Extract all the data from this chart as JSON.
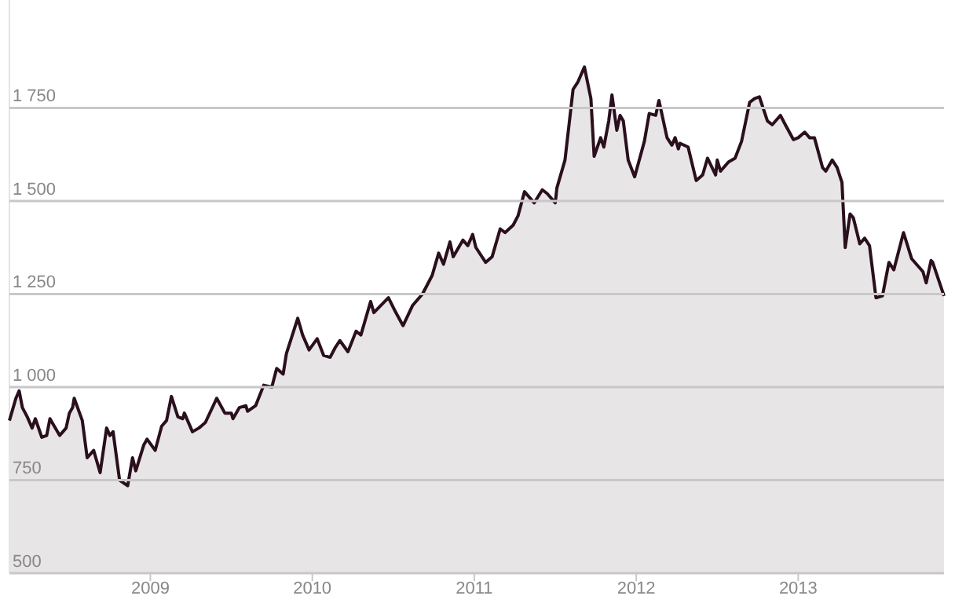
{
  "chart_data": {
    "type": "area",
    "color": "#2a0f1d",
    "grid": "y",
    "xlim": [
      2008.13,
      2013.9
    ],
    "xticks": [
      2009,
      2010,
      2011,
      2012,
      2013
    ],
    "ylim": [
      500,
      2040
    ],
    "yticks": [
      500,
      750,
      {
        "value": 1000,
        "label": "1 000"
      },
      {
        "value": 1250,
        "label": "1 250"
      },
      {
        "value": 1500,
        "label": "1 500"
      },
      {
        "value": 1750,
        "label": "1 750"
      }
    ],
    "x": [
      2008.13,
      2008.17,
      2008.19,
      2008.21,
      2008.24,
      2008.27,
      2008.29,
      2008.33,
      2008.36,
      2008.38,
      2008.44,
      2008.48,
      2008.5,
      2008.52,
      2008.53,
      2008.58,
      2008.61,
      2008.65,
      2008.69,
      2008.73,
      2008.75,
      2008.77,
      2008.81,
      2008.86,
      2008.89,
      2008.91,
      2008.96,
      2008.98,
      2009.03,
      2009.07,
      2009.1,
      2009.13,
      2009.17,
      2009.2,
      2009.21,
      2009.26,
      2009.3,
      2009.34,
      2009.41,
      2009.46,
      2009.5,
      2009.51,
      2009.55,
      2009.59,
      2009.6,
      2009.65,
      2009.7,
      2009.75,
      2009.78,
      2009.82,
      2009.84,
      2009.91,
      2009.94,
      2009.98,
      2010.03,
      2010.07,
      2010.11,
      2010.14,
      2010.17,
      2010.22,
      2010.27,
      2010.3,
      2010.36,
      2010.38,
      2010.47,
      2010.51,
      2010.56,
      2010.62,
      2010.68,
      2010.74,
      2010.78,
      2010.81,
      2010.85,
      2010.87,
      2010.93,
      2010.96,
      2010.99,
      2011.01,
      2011.07,
      2011.11,
      2011.16,
      2011.19,
      2011.24,
      2011.27,
      2011.31,
      2011.37,
      2011.42,
      2011.45,
      2011.5,
      2011.51,
      2011.56,
      2011.61,
      2011.64,
      2011.68,
      2011.72,
      2011.74,
      2011.78,
      2011.8,
      2011.83,
      2011.85,
      2011.88,
      2011.9,
      2011.92,
      2011.95,
      2011.99,
      2012.05,
      2012.08,
      2012.12,
      2012.14,
      2012.19,
      2012.22,
      2012.24,
      2012.26,
      2012.27,
      2012.32,
      2012.37,
      2012.41,
      2012.44,
      2012.49,
      2012.5,
      2012.52,
      2012.57,
      2012.61,
      2012.65,
      2012.7,
      2012.73,
      2012.76,
      2012.81,
      2012.84,
      2012.89,
      2012.92,
      2012.97,
      2013.0,
      2013.04,
      2013.07,
      2013.1,
      2013.15,
      2013.17,
      2013.21,
      2013.24,
      2013.27,
      2013.29,
      2013.32,
      2013.34,
      2013.38,
      2013.41,
      2013.44,
      2013.48,
      2013.52,
      2013.56,
      2013.59,
      2013.65,
      2013.7,
      2013.77,
      2013.79,
      2013.82,
      2013.83,
      2013.9
    ],
    "values": [
      910,
      970,
      990,
      945,
      920,
      890,
      915,
      865,
      870,
      915,
      870,
      890,
      930,
      945,
      970,
      910,
      810,
      830,
      770,
      890,
      870,
      880,
      750,
      735,
      810,
      775,
      845,
      860,
      830,
      895,
      910,
      975,
      920,
      915,
      930,
      880,
      890,
      905,
      970,
      930,
      930,
      915,
      945,
      950,
      935,
      950,
      1005,
      1000,
      1050,
      1035,
      1090,
      1185,
      1140,
      1100,
      1130,
      1085,
      1080,
      1105,
      1125,
      1095,
      1150,
      1140,
      1230,
      1200,
      1240,
      1205,
      1165,
      1220,
      1250,
      1300,
      1360,
      1330,
      1390,
      1350,
      1395,
      1380,
      1410,
      1375,
      1335,
      1350,
      1425,
      1415,
      1435,
      1460,
      1525,
      1495,
      1530,
      1520,
      1495,
      1535,
      1610,
      1800,
      1820,
      1860,
      1775,
      1620,
      1670,
      1645,
      1715,
      1785,
      1690,
      1730,
      1715,
      1610,
      1565,
      1660,
      1735,
      1730,
      1770,
      1670,
      1650,
      1670,
      1640,
      1655,
      1645,
      1555,
      1570,
      1615,
      1570,
      1610,
      1580,
      1605,
      1615,
      1660,
      1765,
      1775,
      1780,
      1715,
      1705,
      1730,
      1705,
      1665,
      1670,
      1685,
      1670,
      1670,
      1590,
      1580,
      1610,
      1590,
      1550,
      1375,
      1465,
      1455,
      1385,
      1400,
      1380,
      1240,
      1245,
      1335,
      1315,
      1415,
      1345,
      1310,
      1280,
      1340,
      1335,
      1245
    ]
  }
}
